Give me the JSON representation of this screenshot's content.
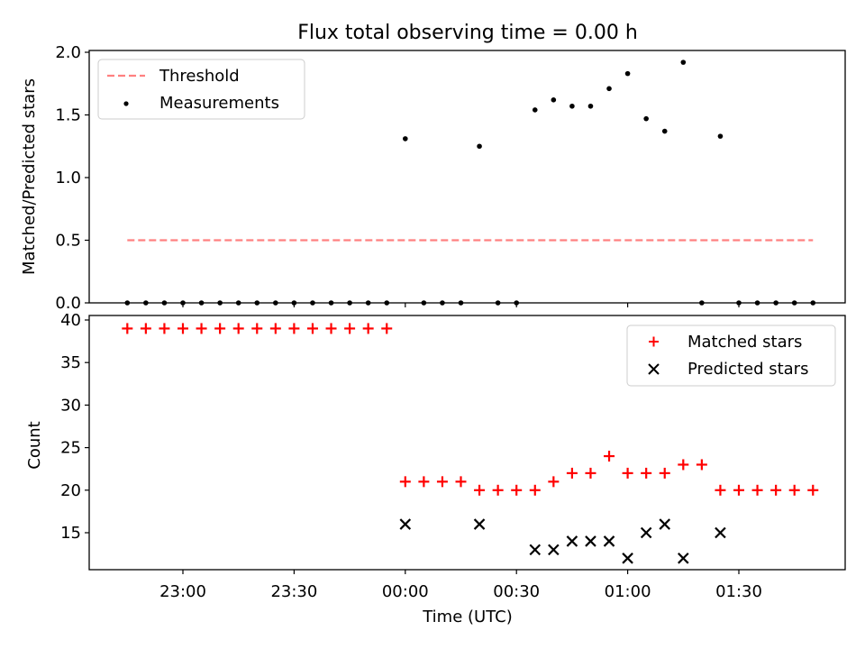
{
  "chart_data": [
    {
      "type": "scatter",
      "title": "Flux total observing time = 0.00 h",
      "xlabel": "",
      "ylabel": "Matched/Predicted stars",
      "ylim": [
        0.0,
        2.0
      ],
      "yticks": [
        "0.0",
        "0.5",
        "1.0",
        "1.5",
        "2.0"
      ],
      "legend": {
        "position": "top-left",
        "entries": [
          "Threshold",
          "Measurements"
        ]
      },
      "threshold": {
        "name": "Threshold",
        "y": 0.5,
        "x_start": "22:45",
        "x_end": "01:50",
        "color": "#ff8080"
      },
      "series": [
        {
          "name": "Measurements",
          "color": "#000000",
          "x": [
            "22:45",
            "22:50",
            "22:55",
            "23:00",
            "23:05",
            "23:10",
            "23:15",
            "23:20",
            "23:25",
            "23:30",
            "23:35",
            "23:40",
            "23:45",
            "23:50",
            "23:55",
            "00:00",
            "00:05",
            "00:10",
            "00:15",
            "00:20",
            "00:25",
            "00:30",
            "00:35",
            "00:40",
            "00:45",
            "00:50",
            "00:55",
            "01:00",
            "01:05",
            "01:10",
            "01:15",
            "01:20",
            "01:25",
            "01:30",
            "01:35",
            "01:40",
            "01:45",
            "01:50"
          ],
          "y": [
            0,
            0,
            0,
            0,
            0,
            0,
            0,
            0,
            0,
            0,
            0,
            0,
            0,
            0,
            0,
            1.31,
            0,
            0,
            0,
            1.25,
            0,
            0,
            1.54,
            1.62,
            1.57,
            1.57,
            1.71,
            1.83,
            1.47,
            1.37,
            1.92,
            0,
            1.33,
            0,
            0,
            0,
            0,
            0
          ]
        }
      ]
    },
    {
      "type": "scatter",
      "title": "",
      "xlabel": "Time (UTC)",
      "ylabel": "Count",
      "ylim": [
        10.4,
        40.5
      ],
      "yticks": [
        "15",
        "20",
        "25",
        "30",
        "35",
        "40"
      ],
      "xticks": [
        "23:00",
        "23:30",
        "00:00",
        "00:30",
        "01:00",
        "01:30"
      ],
      "legend": {
        "position": "top-right",
        "entries": [
          "Matched stars",
          "Predicted stars"
        ]
      },
      "series": [
        {
          "name": "Matched stars",
          "marker": "+",
          "color": "#ff0000",
          "x": [
            "22:45",
            "22:50",
            "22:55",
            "23:00",
            "23:05",
            "23:10",
            "23:15",
            "23:20",
            "23:25",
            "23:30",
            "23:35",
            "23:40",
            "23:45",
            "23:50",
            "23:55",
            "00:00",
            "00:05",
            "00:10",
            "00:15",
            "00:20",
            "00:25",
            "00:30",
            "00:35",
            "00:40",
            "00:45",
            "00:50",
            "00:55",
            "01:00",
            "01:05",
            "01:10",
            "01:15",
            "01:20",
            "01:25",
            "01:30",
            "01:35",
            "01:40",
            "01:45",
            "01:50"
          ],
          "y": [
            39,
            39,
            39,
            39,
            39,
            39,
            39,
            39,
            39,
            39,
            39,
            39,
            39,
            39,
            39,
            21,
            21,
            21,
            21,
            20,
            20,
            20,
            20,
            21,
            22,
            22,
            24,
            22,
            22,
            22,
            23,
            23,
            20,
            20,
            20,
            20,
            20,
            20
          ]
        },
        {
          "name": "Predicted stars",
          "marker": "x",
          "color": "#000000",
          "x": [
            "00:00",
            "00:20",
            "00:35",
            "00:40",
            "00:45",
            "00:50",
            "00:55",
            "01:00",
            "01:05",
            "01:10",
            "01:15",
            "01:25"
          ],
          "y": [
            16,
            16,
            13,
            13,
            14,
            14,
            14,
            12,
            15,
            16,
            12,
            15
          ]
        }
      ]
    }
  ]
}
